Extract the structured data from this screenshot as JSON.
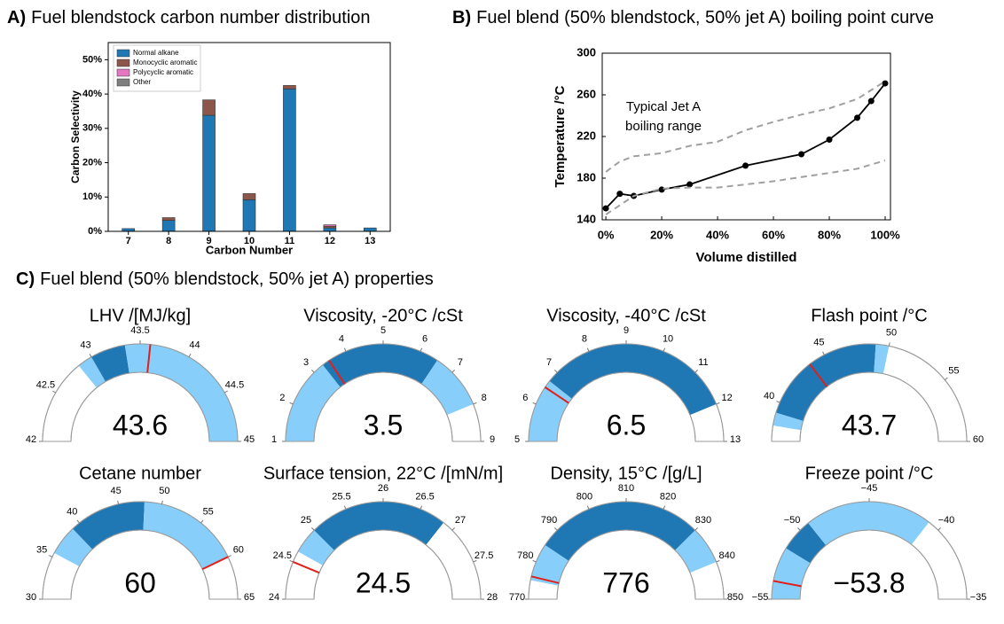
{
  "chart_data": [
    {
      "type": "bar",
      "label": "A)",
      "title": "Fuel blendstock carbon number distribution",
      "xlabel": "Carbon Number",
      "ylabel": "Carbon Selectivity",
      "categories": [
        "7",
        "8",
        "9",
        "10",
        "11",
        "12",
        "13"
      ],
      "series": [
        {
          "name": "Normal alkane",
          "color": "#1f77b4",
          "values": [
            0.8,
            3.2,
            33.8,
            9.2,
            41.5,
            1.0,
            1.0
          ]
        },
        {
          "name": "Monocyclic aromatic",
          "color": "#8c564b",
          "values": [
            0,
            0.8,
            4.5,
            1.8,
            1.0,
            0.5,
            0
          ]
        },
        {
          "name": "Polycyclic aromatic",
          "color": "#e377c2",
          "values": [
            0,
            0,
            0,
            0,
            0,
            0.4,
            0
          ]
        },
        {
          "name": "Other",
          "color": "#7f7f7f",
          "values": [
            0,
            0,
            0,
            0,
            0,
            0,
            0
          ]
        }
      ],
      "stacked": true,
      "legend": "upper left",
      "ylim": [
        0,
        55
      ],
      "yticks": [
        {
          "value": 0,
          "label": "0%"
        },
        {
          "value": 10,
          "label": "10%"
        },
        {
          "value": 20,
          "label": "20%"
        },
        {
          "value": 30,
          "label": "30%"
        },
        {
          "value": 40,
          "label": "40%"
        },
        {
          "value": 50,
          "label": "50%"
        }
      ]
    },
    {
      "type": "line",
      "label": "B)",
      "title": "Fuel blend (50% blendstock, 50% jet A) boiling point curve",
      "xlabel": "Volume distilled",
      "ylabel": "Temperature /°C",
      "annotation": [
        "Typical Jet A",
        "boiling range"
      ],
      "series": [
        {
          "color": "#000000",
          "marker": true,
          "x": [
            0,
            5,
            10,
            20,
            30,
            50,
            70,
            80,
            90,
            95,
            100
          ],
          "values": [
            151,
            165,
            163,
            169,
            174,
            192,
            203,
            217,
            238,
            254,
            271
          ]
        },
        {
          "color": "#a0a0a0",
          "linestyle": "dashed",
          "x": [
            0,
            5,
            10,
            20,
            30,
            40,
            50,
            60,
            70,
            80,
            90,
            100
          ],
          "values": [
            186,
            196,
            201,
            204,
            211,
            215,
            226,
            234,
            241,
            247,
            256,
            273
          ]
        },
        {
          "color": "#a0a0a0",
          "linestyle": "dashed",
          "x": [
            0,
            10,
            20,
            30,
            40,
            50,
            60,
            70,
            80,
            90,
            100
          ],
          "values": [
            145,
            163,
            170,
            171,
            171,
            174,
            177,
            181,
            185,
            189,
            197
          ]
        }
      ],
      "xlim": [
        -1.3,
        101.9
      ],
      "ylim": [
        140,
        300
      ],
      "xticks": [
        {
          "value": 0,
          "label": "0%"
        },
        {
          "value": 20,
          "label": "20%"
        },
        {
          "value": 40,
          "label": "40%"
        },
        {
          "value": 60,
          "label": "60%"
        },
        {
          "value": 80,
          "label": "80%"
        },
        {
          "value": 100,
          "label": "100%"
        }
      ],
      "yticks": [
        140,
        180,
        220,
        260,
        300
      ]
    },
    {
      "type": "gauge",
      "label": "C)",
      "title": "Fuel blend (50% blendstock, 50% jet A) properties",
      "gauges": [
        {
          "title": "LHV /[MJ/kg]",
          "range": [
            42,
            45
          ],
          "ticks": [
            42,
            42.5,
            43,
            43.5,
            44,
            44.5,
            45
          ],
          "value": 43.6,
          "bands": [
            {
              "from": 42.85,
              "to": 43.0,
              "color": "#87cefa"
            },
            {
              "from": 43.0,
              "to": 43.35,
              "color": "#1f77b4"
            },
            {
              "from": 43.35,
              "to": 45,
              "color": "#87cefa"
            }
          ]
        },
        {
          "title": "Viscosity, -20°C /cSt",
          "range": [
            1,
            9
          ],
          "ticks": [
            1,
            2,
            3,
            4,
            5,
            6,
            7,
            8,
            9
          ],
          "value": 3.5,
          "bands": [
            {
              "from": 1,
              "to": 3.3,
              "color": "#87cefa"
            },
            {
              "from": 3.3,
              "to": 6.5,
              "color": "#1f77b4"
            },
            {
              "from": 6.5,
              "to": 8,
              "color": "#87cefa"
            }
          ]
        },
        {
          "title": "Viscosity, -40°C /cSt",
          "range": [
            5,
            13
          ],
          "ticks": [
            5,
            6,
            7,
            8,
            9,
            10,
            11,
            12,
            13
          ],
          "value": 6.5,
          "bands": [
            {
              "from": 5,
              "to": 6.7,
              "color": "#87cefa"
            },
            {
              "from": 6.7,
              "to": 12,
              "color": "#1f77b4"
            }
          ]
        },
        {
          "title": "Flash point /°C",
          "range": [
            37,
            60
          ],
          "ticks": [
            40,
            45,
            50,
            55,
            60
          ],
          "value": 43.7,
          "bands": [
            {
              "from": 38.2,
              "to": 39.2,
              "color": "#87cefa"
            },
            {
              "from": 39.2,
              "to": 49,
              "color": "#1f77b4"
            },
            {
              "from": 49,
              "to": 50,
              "color": "#87cefa"
            }
          ]
        },
        {
          "title": "Cetane number",
          "range": [
            30,
            65
          ],
          "ticks": [
            30,
            35,
            40,
            45,
            50,
            55,
            60,
            65
          ],
          "value": 60,
          "bands": [
            {
              "from": 35.5,
              "to": 39,
              "color": "#87cefa"
            },
            {
              "from": 39,
              "to": 48,
              "color": "#1f77b4"
            },
            {
              "from": 48,
              "to": 60,
              "color": "#87cefa"
            }
          ]
        },
        {
          "title": "Surface tension, 22°C /[mN/m]",
          "range": [
            24,
            28
          ],
          "ticks": [
            24,
            24.5,
            25,
            25.5,
            26,
            26.5,
            27,
            27.5,
            28
          ],
          "value": 24.5,
          "bands": [
            {
              "from": 24.65,
              "to": 25.0,
              "color": "#87cefa"
            },
            {
              "from": 25.0,
              "to": 26.85,
              "color": "#1f77b4"
            }
          ]
        },
        {
          "title": "Density, 15°C /[g/L]",
          "range": [
            770,
            850
          ],
          "ticks": [
            770,
            780,
            790,
            800,
            810,
            820,
            830,
            840,
            850
          ],
          "value": 776,
          "bands": [
            {
              "from": 775,
              "to": 785,
              "color": "#87cefa"
            },
            {
              "from": 785,
              "to": 830,
              "color": "#1f77b4"
            },
            {
              "from": 830,
              "to": 840,
              "color": "#87cefa"
            }
          ]
        },
        {
          "title": "Freeze point /°C",
          "range": [
            -55,
            -35
          ],
          "value": -53.8,
          "value_label": "−53.8",
          "ticks": [
            {
              "value": -55,
              "label": "−55"
            },
            {
              "value": -50,
              "label": "−50"
            },
            {
              "value": -45,
              "label": "−45"
            },
            {
              "value": -40,
              "label": "−40"
            },
            {
              "value": -35,
              "label": "−35"
            }
          ],
          "bands": [
            {
              "from": -55,
              "to": -51.5,
              "color": "#87cefa"
            },
            {
              "from": -51.5,
              "to": -49.3,
              "color": "#1f77b4"
            },
            {
              "from": -49.3,
              "to": -40.8,
              "color": "#87cefa"
            }
          ]
        }
      ]
    }
  ]
}
